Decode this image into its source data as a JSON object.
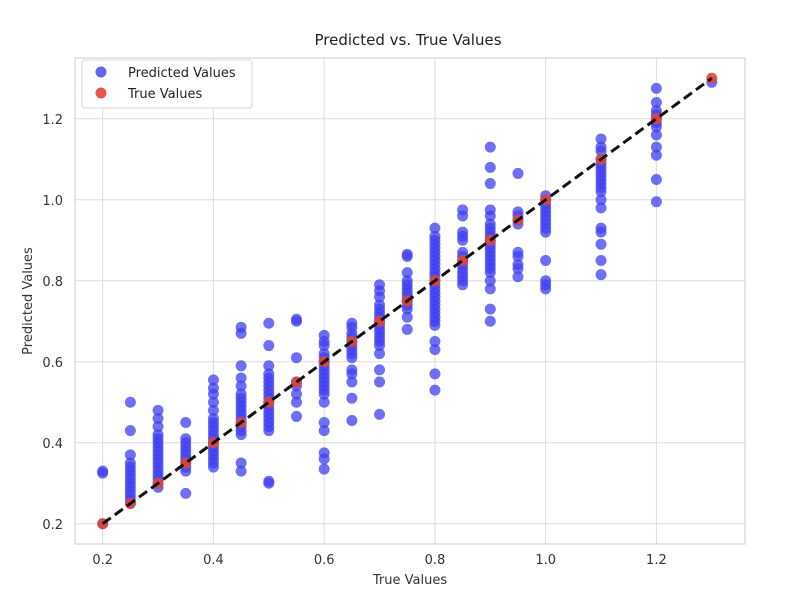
{
  "chart_data": {
    "type": "scatter",
    "title": "Predicted vs. True Values",
    "xlabel": "True Values",
    "ylabel": "Predicted Values",
    "xlim": [
      0.15,
      1.36
    ],
    "ylim": [
      0.15,
      1.35
    ],
    "xticks": [
      "0.2",
      "0.4",
      "0.6",
      "0.8",
      "1.0",
      "1.2"
    ],
    "yticks": [
      "0.2",
      "0.4",
      "0.6",
      "0.8",
      "1.0",
      "1.2"
    ],
    "grid": true,
    "legend_position": "top-left",
    "colors": {
      "predicted": "#3f3ff0",
      "true": "#e0453a",
      "reference_line": "#111111",
      "grid": "#dddddd",
      "axes": "#cccccc"
    },
    "series": [
      {
        "name": "Predicted Values",
        "marker": "circle",
        "points": [
          [
            0.2,
            0.33
          ],
          [
            0.2,
            0.325
          ],
          [
            0.2,
            0.2
          ],
          [
            0.25,
            0.5
          ],
          [
            0.25,
            0.43
          ],
          [
            0.25,
            0.37
          ],
          [
            0.25,
            0.35
          ],
          [
            0.25,
            0.34
          ],
          [
            0.25,
            0.33
          ],
          [
            0.25,
            0.32
          ],
          [
            0.25,
            0.31
          ],
          [
            0.25,
            0.3
          ],
          [
            0.25,
            0.29
          ],
          [
            0.25,
            0.28
          ],
          [
            0.25,
            0.27
          ],
          [
            0.25,
            0.26
          ],
          [
            0.25,
            0.25
          ],
          [
            0.3,
            0.48
          ],
          [
            0.3,
            0.46
          ],
          [
            0.3,
            0.44
          ],
          [
            0.3,
            0.42
          ],
          [
            0.3,
            0.41
          ],
          [
            0.3,
            0.4
          ],
          [
            0.3,
            0.39
          ],
          [
            0.3,
            0.38
          ],
          [
            0.3,
            0.37
          ],
          [
            0.3,
            0.36
          ],
          [
            0.3,
            0.35
          ],
          [
            0.3,
            0.34
          ],
          [
            0.3,
            0.33
          ],
          [
            0.3,
            0.32
          ],
          [
            0.3,
            0.31
          ],
          [
            0.3,
            0.3
          ],
          [
            0.3,
            0.29
          ],
          [
            0.35,
            0.45
          ],
          [
            0.35,
            0.41
          ],
          [
            0.35,
            0.4
          ],
          [
            0.35,
            0.39
          ],
          [
            0.35,
            0.38
          ],
          [
            0.35,
            0.37
          ],
          [
            0.35,
            0.36
          ],
          [
            0.35,
            0.35
          ],
          [
            0.35,
            0.34
          ],
          [
            0.35,
            0.33
          ],
          [
            0.35,
            0.275
          ],
          [
            0.4,
            0.555
          ],
          [
            0.4,
            0.535
          ],
          [
            0.4,
            0.52
          ],
          [
            0.4,
            0.5
          ],
          [
            0.4,
            0.48
          ],
          [
            0.4,
            0.46
          ],
          [
            0.4,
            0.45
          ],
          [
            0.4,
            0.44
          ],
          [
            0.4,
            0.43
          ],
          [
            0.4,
            0.42
          ],
          [
            0.4,
            0.41
          ],
          [
            0.4,
            0.4
          ],
          [
            0.4,
            0.39
          ],
          [
            0.4,
            0.38
          ],
          [
            0.4,
            0.37
          ],
          [
            0.4,
            0.36
          ],
          [
            0.4,
            0.35
          ],
          [
            0.4,
            0.34
          ],
          [
            0.45,
            0.685
          ],
          [
            0.45,
            0.67
          ],
          [
            0.45,
            0.59
          ],
          [
            0.45,
            0.56
          ],
          [
            0.45,
            0.54
          ],
          [
            0.45,
            0.52
          ],
          [
            0.45,
            0.51
          ],
          [
            0.45,
            0.5
          ],
          [
            0.45,
            0.49
          ],
          [
            0.45,
            0.48
          ],
          [
            0.45,
            0.47
          ],
          [
            0.45,
            0.46
          ],
          [
            0.45,
            0.45
          ],
          [
            0.45,
            0.44
          ],
          [
            0.45,
            0.43
          ],
          [
            0.45,
            0.42
          ],
          [
            0.45,
            0.35
          ],
          [
            0.45,
            0.33
          ],
          [
            0.5,
            0.695
          ],
          [
            0.5,
            0.64
          ],
          [
            0.5,
            0.59
          ],
          [
            0.5,
            0.57
          ],
          [
            0.5,
            0.56
          ],
          [
            0.5,
            0.55
          ],
          [
            0.5,
            0.54
          ],
          [
            0.5,
            0.53
          ],
          [
            0.5,
            0.52
          ],
          [
            0.5,
            0.51
          ],
          [
            0.5,
            0.5
          ],
          [
            0.5,
            0.49
          ],
          [
            0.5,
            0.48
          ],
          [
            0.5,
            0.47
          ],
          [
            0.5,
            0.46
          ],
          [
            0.5,
            0.45
          ],
          [
            0.5,
            0.44
          ],
          [
            0.5,
            0.43
          ],
          [
            0.5,
            0.305
          ],
          [
            0.5,
            0.3
          ],
          [
            0.55,
            0.705
          ],
          [
            0.55,
            0.7
          ],
          [
            0.55,
            0.61
          ],
          [
            0.55,
            0.55
          ],
          [
            0.55,
            0.54
          ],
          [
            0.55,
            0.52
          ],
          [
            0.55,
            0.5
          ],
          [
            0.55,
            0.465
          ],
          [
            0.6,
            0.665
          ],
          [
            0.6,
            0.65
          ],
          [
            0.6,
            0.64
          ],
          [
            0.6,
            0.62
          ],
          [
            0.6,
            0.61
          ],
          [
            0.6,
            0.6
          ],
          [
            0.6,
            0.59
          ],
          [
            0.6,
            0.58
          ],
          [
            0.6,
            0.57
          ],
          [
            0.6,
            0.56
          ],
          [
            0.6,
            0.55
          ],
          [
            0.6,
            0.54
          ],
          [
            0.6,
            0.53
          ],
          [
            0.6,
            0.52
          ],
          [
            0.6,
            0.5
          ],
          [
            0.6,
            0.45
          ],
          [
            0.6,
            0.43
          ],
          [
            0.6,
            0.375
          ],
          [
            0.6,
            0.36
          ],
          [
            0.6,
            0.335
          ],
          [
            0.65,
            0.695
          ],
          [
            0.65,
            0.685
          ],
          [
            0.65,
            0.67
          ],
          [
            0.65,
            0.66
          ],
          [
            0.65,
            0.65
          ],
          [
            0.65,
            0.64
          ],
          [
            0.65,
            0.63
          ],
          [
            0.65,
            0.62
          ],
          [
            0.65,
            0.61
          ],
          [
            0.65,
            0.58
          ],
          [
            0.65,
            0.57
          ],
          [
            0.65,
            0.55
          ],
          [
            0.65,
            0.51
          ],
          [
            0.65,
            0.455
          ],
          [
            0.7,
            0.79
          ],
          [
            0.7,
            0.775
          ],
          [
            0.7,
            0.76
          ],
          [
            0.7,
            0.74
          ],
          [
            0.7,
            0.73
          ],
          [
            0.7,
            0.72
          ],
          [
            0.7,
            0.71
          ],
          [
            0.7,
            0.7
          ],
          [
            0.7,
            0.69
          ],
          [
            0.7,
            0.68
          ],
          [
            0.7,
            0.67
          ],
          [
            0.7,
            0.66
          ],
          [
            0.7,
            0.65
          ],
          [
            0.7,
            0.64
          ],
          [
            0.7,
            0.62
          ],
          [
            0.7,
            0.58
          ],
          [
            0.7,
            0.55
          ],
          [
            0.7,
            0.47
          ],
          [
            0.75,
            0.865
          ],
          [
            0.75,
            0.86
          ],
          [
            0.75,
            0.82
          ],
          [
            0.75,
            0.8
          ],
          [
            0.75,
            0.79
          ],
          [
            0.75,
            0.78
          ],
          [
            0.75,
            0.77
          ],
          [
            0.75,
            0.76
          ],
          [
            0.75,
            0.75
          ],
          [
            0.75,
            0.74
          ],
          [
            0.75,
            0.73
          ],
          [
            0.75,
            0.71
          ],
          [
            0.75,
            0.68
          ],
          [
            0.8,
            0.93
          ],
          [
            0.8,
            0.91
          ],
          [
            0.8,
            0.9
          ],
          [
            0.8,
            0.89
          ],
          [
            0.8,
            0.88
          ],
          [
            0.8,
            0.87
          ],
          [
            0.8,
            0.86
          ],
          [
            0.8,
            0.85
          ],
          [
            0.8,
            0.84
          ],
          [
            0.8,
            0.83
          ],
          [
            0.8,
            0.82
          ],
          [
            0.8,
            0.81
          ],
          [
            0.8,
            0.8
          ],
          [
            0.8,
            0.79
          ],
          [
            0.8,
            0.78
          ],
          [
            0.8,
            0.77
          ],
          [
            0.8,
            0.76
          ],
          [
            0.8,
            0.75
          ],
          [
            0.8,
            0.74
          ],
          [
            0.8,
            0.73
          ],
          [
            0.8,
            0.72
          ],
          [
            0.8,
            0.71
          ],
          [
            0.8,
            0.7
          ],
          [
            0.8,
            0.69
          ],
          [
            0.8,
            0.65
          ],
          [
            0.8,
            0.63
          ],
          [
            0.8,
            0.57
          ],
          [
            0.8,
            0.53
          ],
          [
            0.85,
            0.975
          ],
          [
            0.85,
            0.96
          ],
          [
            0.85,
            0.92
          ],
          [
            0.85,
            0.91
          ],
          [
            0.85,
            0.9
          ],
          [
            0.85,
            0.87
          ],
          [
            0.85,
            0.86
          ],
          [
            0.85,
            0.85
          ],
          [
            0.85,
            0.84
          ],
          [
            0.85,
            0.83
          ],
          [
            0.85,
            0.82
          ],
          [
            0.85,
            0.81
          ],
          [
            0.85,
            0.8
          ],
          [
            0.85,
            0.79
          ],
          [
            0.9,
            1.13
          ],
          [
            0.9,
            1.08
          ],
          [
            0.9,
            1.04
          ],
          [
            0.9,
            0.975
          ],
          [
            0.9,
            0.96
          ],
          [
            0.9,
            0.94
          ],
          [
            0.9,
            0.93
          ],
          [
            0.9,
            0.92
          ],
          [
            0.9,
            0.91
          ],
          [
            0.9,
            0.9
          ],
          [
            0.9,
            0.89
          ],
          [
            0.9,
            0.88
          ],
          [
            0.9,
            0.87
          ],
          [
            0.9,
            0.86
          ],
          [
            0.9,
            0.85
          ],
          [
            0.9,
            0.84
          ],
          [
            0.9,
            0.83
          ],
          [
            0.9,
            0.82
          ],
          [
            0.9,
            0.8
          ],
          [
            0.9,
            0.78
          ],
          [
            0.9,
            0.73
          ],
          [
            0.9,
            0.7
          ],
          [
            0.95,
            1.065
          ],
          [
            0.95,
            0.97
          ],
          [
            0.95,
            0.96
          ],
          [
            0.95,
            0.95
          ],
          [
            0.95,
            0.94
          ],
          [
            0.95,
            0.87
          ],
          [
            0.95,
            0.86
          ],
          [
            0.95,
            0.84
          ],
          [
            0.95,
            0.83
          ],
          [
            0.95,
            0.81
          ],
          [
            1.0,
            1.01
          ],
          [
            1.0,
            1.0
          ],
          [
            1.0,
            0.99
          ],
          [
            1.0,
            0.98
          ],
          [
            1.0,
            0.97
          ],
          [
            1.0,
            0.96
          ],
          [
            1.0,
            0.95
          ],
          [
            1.0,
            0.94
          ],
          [
            1.0,
            0.93
          ],
          [
            1.0,
            0.92
          ],
          [
            1.0,
            0.85
          ],
          [
            1.0,
            0.8
          ],
          [
            1.0,
            0.79
          ],
          [
            1.0,
            0.78
          ],
          [
            1.1,
            1.15
          ],
          [
            1.1,
            1.13
          ],
          [
            1.1,
            1.12
          ],
          [
            1.1,
            1.1
          ],
          [
            1.1,
            1.09
          ],
          [
            1.1,
            1.08
          ],
          [
            1.1,
            1.07
          ],
          [
            1.1,
            1.06
          ],
          [
            1.1,
            1.05
          ],
          [
            1.1,
            1.04
          ],
          [
            1.1,
            1.03
          ],
          [
            1.1,
            1.02
          ],
          [
            1.1,
            1.0
          ],
          [
            1.1,
            0.98
          ],
          [
            1.1,
            0.93
          ],
          [
            1.1,
            0.92
          ],
          [
            1.1,
            0.89
          ],
          [
            1.1,
            0.85
          ],
          [
            1.1,
            0.815
          ],
          [
            1.2,
            1.275
          ],
          [
            1.2,
            1.24
          ],
          [
            1.2,
            1.22
          ],
          [
            1.2,
            1.21
          ],
          [
            1.2,
            1.2
          ],
          [
            1.2,
            1.19
          ],
          [
            1.2,
            1.18
          ],
          [
            1.2,
            1.16
          ],
          [
            1.2,
            1.13
          ],
          [
            1.2,
            1.11
          ],
          [
            1.2,
            1.05
          ],
          [
            1.2,
            0.995
          ],
          [
            1.3,
            1.29
          ]
        ]
      },
      {
        "name": "True Values",
        "marker": "circle",
        "points": [
          [
            0.2,
            0.2
          ],
          [
            0.25,
            0.25
          ],
          [
            0.3,
            0.3
          ],
          [
            0.35,
            0.35
          ],
          [
            0.4,
            0.4
          ],
          [
            0.45,
            0.45
          ],
          [
            0.5,
            0.5
          ],
          [
            0.55,
            0.55
          ],
          [
            0.6,
            0.6
          ],
          [
            0.65,
            0.65
          ],
          [
            0.7,
            0.7
          ],
          [
            0.75,
            0.75
          ],
          [
            0.8,
            0.8
          ],
          [
            0.85,
            0.85
          ],
          [
            0.9,
            0.9
          ],
          [
            0.95,
            0.95
          ],
          [
            1.0,
            1.0
          ],
          [
            1.1,
            1.1
          ],
          [
            1.2,
            1.2
          ],
          [
            1.3,
            1.3
          ]
        ]
      }
    ],
    "reference_line": {
      "style": "dashed",
      "from": [
        0.2,
        0.2
      ],
      "to": [
        1.3,
        1.3
      ]
    }
  }
}
